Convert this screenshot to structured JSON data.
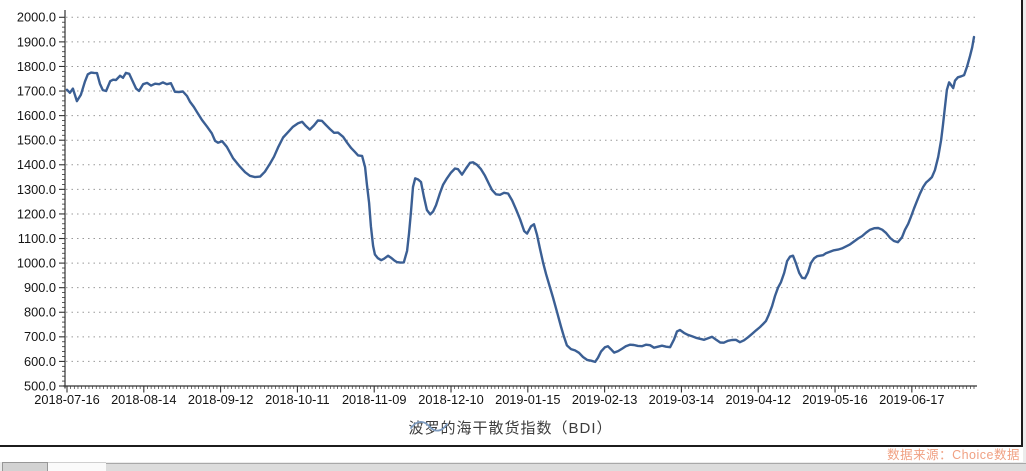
{
  "window": {
    "background": "#ffffff",
    "frame_border_color": "#1c1c1c"
  },
  "chart_data": {
    "type": "line",
    "title": "",
    "xlabel": "",
    "ylabel": "",
    "ylim": [
      500,
      2000
    ],
    "y_tick_step": 100,
    "y_tick_labels": [
      "500.0",
      "600.0",
      "700.0",
      "800.0",
      "900.0",
      "1000.0",
      "1100.0",
      "1200.0",
      "1300.0",
      "1400.0",
      "1500.0",
      "1600.0",
      "1700.0",
      "1800.0",
      "1900.0",
      "2000.0"
    ],
    "x_total_days": 248,
    "x_ticks": [
      {
        "day": 0,
        "label": "2018-07-16"
      },
      {
        "day": 21,
        "label": "2018-08-14"
      },
      {
        "day": 42,
        "label": "2018-09-12"
      },
      {
        "day": 63,
        "label": "2018-10-11"
      },
      {
        "day": 84,
        "label": "2018-11-09"
      },
      {
        "day": 105,
        "label": "2018-12-10"
      },
      {
        "day": 126,
        "label": "2019-01-15"
      },
      {
        "day": 147,
        "label": "2019-02-13"
      },
      {
        "day": 168,
        "label": "2019-03-14"
      },
      {
        "day": 189,
        "label": "2019-04-12"
      },
      {
        "day": 210,
        "label": "2019-05-16"
      },
      {
        "day": 231,
        "label": "2019-06-17"
      }
    ],
    "grid": "dotted horizontal lines at every 100",
    "legend_position": "bottom-center",
    "series": [
      {
        "name": "波罗的海干散货指数（BDI）",
        "color": "#3b5f94",
        "points": [
          [
            0,
            1705
          ],
          [
            0.8,
            1693
          ],
          [
            1.6,
            1710
          ],
          [
            2.7,
            1659
          ],
          [
            3.8,
            1685
          ],
          [
            4.9,
            1738
          ],
          [
            5.7,
            1768
          ],
          [
            6.6,
            1775
          ],
          [
            7.4,
            1774
          ],
          [
            8.2,
            1773
          ],
          [
            9,
            1730
          ],
          [
            9.8,
            1704
          ],
          [
            10.7,
            1700
          ],
          [
            11.8,
            1740
          ],
          [
            12.6,
            1746
          ],
          [
            13.4,
            1745
          ],
          [
            14.5,
            1762
          ],
          [
            15.3,
            1754
          ],
          [
            16.1,
            1774
          ],
          [
            17,
            1770
          ],
          [
            17.8,
            1745
          ],
          [
            18.9,
            1710
          ],
          [
            19.7,
            1700
          ],
          [
            20.8,
            1728
          ],
          [
            21.9,
            1733
          ],
          [
            23,
            1722
          ],
          [
            24.1,
            1730
          ],
          [
            25.2,
            1728
          ],
          [
            26.2,
            1735
          ],
          [
            27.3,
            1728
          ],
          [
            28.4,
            1732
          ],
          [
            29.5,
            1697
          ],
          [
            30.6,
            1696
          ],
          [
            31.7,
            1698
          ],
          [
            32.8,
            1680
          ],
          [
            33.6,
            1657
          ],
          [
            34.7,
            1635
          ],
          [
            35.5,
            1616
          ],
          [
            36.9,
            1582
          ],
          [
            38.3,
            1555
          ],
          [
            39.6,
            1528
          ],
          [
            40.5,
            1497
          ],
          [
            41.3,
            1490
          ],
          [
            42.4,
            1496
          ],
          [
            43.7,
            1473
          ],
          [
            45.4,
            1427
          ],
          [
            47.3,
            1392
          ],
          [
            48.7,
            1370
          ],
          [
            50,
            1355
          ],
          [
            51.4,
            1350
          ],
          [
            52.8,
            1352
          ],
          [
            54.1,
            1372
          ],
          [
            55.5,
            1405
          ],
          [
            56.6,
            1433
          ],
          [
            57.7,
            1470
          ],
          [
            59.1,
            1511
          ],
          [
            60.2,
            1529
          ],
          [
            61.8,
            1555
          ],
          [
            63.2,
            1569
          ],
          [
            64.3,
            1575
          ],
          [
            65.3,
            1558
          ],
          [
            66.4,
            1543
          ],
          [
            67.5,
            1560
          ],
          [
            68.6,
            1580
          ],
          [
            69.7,
            1579
          ],
          [
            70.8,
            1562
          ],
          [
            71.9,
            1545
          ],
          [
            73,
            1530
          ],
          [
            74.1,
            1531
          ],
          [
            75.5,
            1514
          ],
          [
            76.6,
            1490
          ],
          [
            77.7,
            1468
          ],
          [
            78.7,
            1453
          ],
          [
            79.6,
            1438
          ],
          [
            80.7,
            1436
          ],
          [
            81.5,
            1390
          ],
          [
            82,
            1320
          ],
          [
            82.6,
            1245
          ],
          [
            83.1,
            1150
          ],
          [
            83.7,
            1070
          ],
          [
            84.2,
            1035
          ],
          [
            85,
            1020
          ],
          [
            85.9,
            1012
          ],
          [
            86.7,
            1018
          ],
          [
            87.8,
            1030
          ],
          [
            88.6,
            1022
          ],
          [
            89.4,
            1012
          ],
          [
            90.2,
            1004
          ],
          [
            91.1,
            1002
          ],
          [
            92.1,
            1003
          ],
          [
            93,
            1050
          ],
          [
            93.5,
            1120
          ],
          [
            94.1,
            1215
          ],
          [
            94.6,
            1310
          ],
          [
            95.2,
            1345
          ],
          [
            96,
            1340
          ],
          [
            96.8,
            1330
          ],
          [
            97.6,
            1270
          ],
          [
            98.4,
            1216
          ],
          [
            99.3,
            1198
          ],
          [
            100.1,
            1210
          ],
          [
            100.9,
            1235
          ],
          [
            102,
            1285
          ],
          [
            102.8,
            1318
          ],
          [
            103.9,
            1345
          ],
          [
            105,
            1368
          ],
          [
            106.1,
            1385
          ],
          [
            106.9,
            1382
          ],
          [
            108,
            1360
          ],
          [
            109.1,
            1385
          ],
          [
            110.2,
            1408
          ],
          [
            111,
            1410
          ],
          [
            112.1,
            1400
          ],
          [
            113.2,
            1382
          ],
          [
            114.3,
            1355
          ],
          [
            115.4,
            1322
          ],
          [
            116.2,
            1298
          ],
          [
            117.3,
            1280
          ],
          [
            118.4,
            1278
          ],
          [
            119.5,
            1286
          ],
          [
            120.6,
            1283
          ],
          [
            121.7,
            1255
          ],
          [
            122.8,
            1218
          ],
          [
            123.9,
            1178
          ],
          [
            125,
            1130
          ],
          [
            125.8,
            1120
          ],
          [
            126.9,
            1150
          ],
          [
            127.7,
            1158
          ],
          [
            128.5,
            1115
          ],
          [
            129.3,
            1060
          ],
          [
            130.2,
            1000
          ],
          [
            131,
            955
          ],
          [
            131.8,
            915
          ],
          [
            132.9,
            860
          ],
          [
            134,
            800
          ],
          [
            135.1,
            740
          ],
          [
            135.9,
            700
          ],
          [
            136.7,
            665
          ],
          [
            137.8,
            650
          ],
          [
            138.9,
            645
          ],
          [
            140,
            635
          ],
          [
            141.1,
            618
          ],
          [
            142.2,
            606
          ],
          [
            143.3,
            603
          ],
          [
            144.4,
            598
          ],
          [
            145.2,
            615
          ],
          [
            146,
            640
          ],
          [
            147.1,
            658
          ],
          [
            147.9,
            662
          ],
          [
            148.7,
            650
          ],
          [
            149.6,
            636
          ],
          [
            150.7,
            642
          ],
          [
            151.8,
            652
          ],
          [
            152.8,
            662
          ],
          [
            153.9,
            668
          ],
          [
            155,
            667
          ],
          [
            156.1,
            663
          ],
          [
            157.2,
            662
          ],
          [
            158.3,
            668
          ],
          [
            159.4,
            666
          ],
          [
            160.5,
            656
          ],
          [
            161.6,
            660
          ],
          [
            162.7,
            664
          ],
          [
            163.8,
            660
          ],
          [
            164.9,
            658
          ],
          [
            166,
            690
          ],
          [
            166.8,
            722
          ],
          [
            167.6,
            728
          ],
          [
            168.7,
            716
          ],
          [
            169.8,
            708
          ],
          [
            170.9,
            702
          ],
          [
            172,
            696
          ],
          [
            173.1,
            692
          ],
          [
            174.2,
            688
          ],
          [
            175.3,
            694
          ],
          [
            176.4,
            700
          ],
          [
            177.5,
            688
          ],
          [
            178.6,
            677
          ],
          [
            179.6,
            676
          ],
          [
            180.7,
            684
          ],
          [
            181.8,
            687
          ],
          [
            182.9,
            688
          ],
          [
            184,
            678
          ],
          [
            185.1,
            686
          ],
          [
            186.2,
            698
          ],
          [
            187.3,
            712
          ],
          [
            188.4,
            726
          ],
          [
            189.5,
            740
          ],
          [
            190.3,
            752
          ],
          [
            191.1,
            764
          ],
          [
            191.9,
            790
          ],
          [
            192.8,
            825
          ],
          [
            193.6,
            866
          ],
          [
            194.4,
            900
          ],
          [
            195.2,
            922
          ],
          [
            196.1,
            960
          ],
          [
            196.9,
            1008
          ],
          [
            197.7,
            1026
          ],
          [
            198.5,
            1030
          ],
          [
            199.3,
            1000
          ],
          [
            200.2,
            960
          ],
          [
            201,
            940
          ],
          [
            201.8,
            938
          ],
          [
            202.6,
            962
          ],
          [
            203.4,
            1000
          ],
          [
            204.3,
            1020
          ],
          [
            205.1,
            1028
          ],
          [
            205.9,
            1030
          ],
          [
            206.7,
            1032
          ],
          [
            207.5,
            1040
          ],
          [
            208.6,
            1046
          ],
          [
            209.7,
            1052
          ],
          [
            210.8,
            1055
          ],
          [
            211.9,
            1060
          ],
          [
            213,
            1068
          ],
          [
            214.1,
            1076
          ],
          [
            215.2,
            1088
          ],
          [
            216.3,
            1100
          ],
          [
            217.4,
            1110
          ],
          [
            218.5,
            1124
          ],
          [
            219.6,
            1136
          ],
          [
            220.7,
            1142
          ],
          [
            221.8,
            1143
          ],
          [
            222.9,
            1136
          ],
          [
            224,
            1122
          ],
          [
            225.1,
            1102
          ],
          [
            226.1,
            1090
          ],
          [
            227.2,
            1085
          ],
          [
            228.3,
            1105
          ],
          [
            229.1,
            1135
          ],
          [
            230,
            1160
          ],
          [
            230.8,
            1190
          ],
          [
            231.6,
            1222
          ],
          [
            232.4,
            1252
          ],
          [
            233.2,
            1282
          ],
          [
            234.1,
            1310
          ],
          [
            234.9,
            1328
          ],
          [
            235.7,
            1338
          ],
          [
            236.5,
            1350
          ],
          [
            237.3,
            1378
          ],
          [
            238.2,
            1432
          ],
          [
            239,
            1500
          ],
          [
            239.5,
            1560
          ],
          [
            240.1,
            1640
          ],
          [
            240.6,
            1705
          ],
          [
            241.2,
            1735
          ],
          [
            241.7,
            1725
          ],
          [
            242.3,
            1712
          ],
          [
            242.8,
            1742
          ],
          [
            243.6,
            1756
          ],
          [
            244.5,
            1760
          ],
          [
            245.3,
            1765
          ],
          [
            246.1,
            1800
          ],
          [
            246.9,
            1842
          ],
          [
            247.5,
            1878
          ],
          [
            248,
            1920
          ]
        ]
      }
    ],
    "colors": {
      "line": "#3b5f94",
      "grid_dots": "#999999",
      "axis": "#333333",
      "tick_text": "#141414"
    }
  },
  "legend": {
    "label": "波罗的海干散货指数（BDI）",
    "icon": "wave-line",
    "icon_color": "#7e9cc0"
  },
  "footer": {
    "source_note": "数据来源：Choice数据",
    "source_color": "#f0a183"
  }
}
